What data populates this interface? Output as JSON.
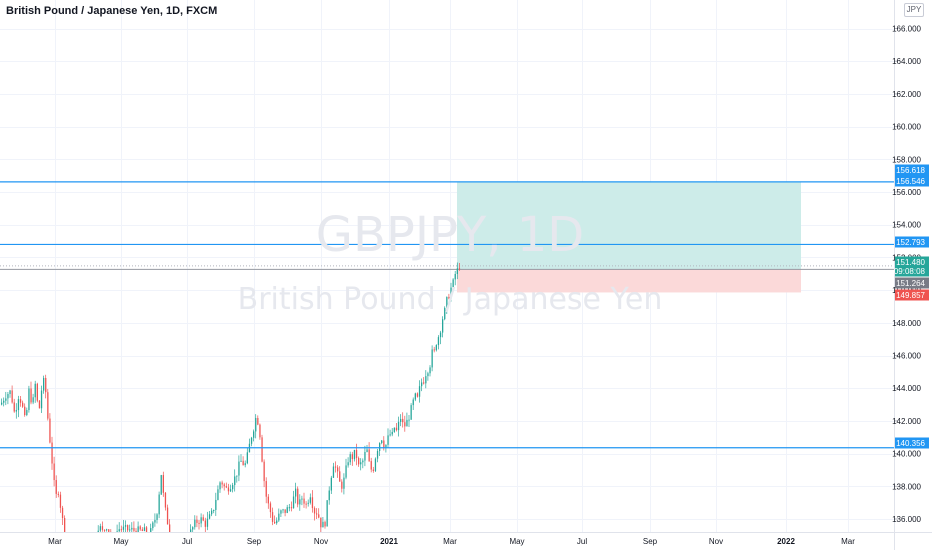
{
  "header": {
    "title": "British Pound / Japanese Yen, 1D, FXCM",
    "currency": "JPY"
  },
  "watermark": {
    "symbol": "GBPJPY, 1D",
    "name": "British Pound / Japanese Yen"
  },
  "colors": {
    "up": "#26a69a",
    "down": "#ef5350",
    "hline": "#2196f3",
    "profit_zone": "#cdece9",
    "loss_zone": "#fbd9d9",
    "countdown_label": "#26a69a",
    "stop_label": "#ef5350",
    "entry_label": "#787b86"
  },
  "chart_data": {
    "type": "candlestick",
    "x": [
      "2020-03",
      "2020-05",
      "2020-07",
      "2020-09",
      "2020-11",
      "2021-01",
      "2021-03",
      "2021-05",
      "2021-07",
      "2021-09",
      "2021-11",
      "2022-01",
      "2022-03"
    ],
    "x_tick_labels": [
      "Mar",
      "May",
      "Jul",
      "Sep",
      "Nov",
      "2021",
      "Mar",
      "May",
      "Jul",
      "Sep",
      "Nov",
      "2022",
      "Mar"
    ],
    "y_ticks": [
      136,
      138,
      140,
      142,
      144,
      146,
      148,
      150,
      152,
      154,
      156,
      158,
      160,
      162,
      164,
      166
    ],
    "y_tick_labels": [
      "136.000",
      "138.000",
      "140.000",
      "142.000",
      "144.000",
      "146.000",
      "148.000",
      "150.000",
      "152.000",
      "154.000",
      "156.000",
      "158.000",
      "160.000",
      "162.000",
      "164.000",
      "166.000"
    ],
    "ylim": [
      134.7,
      167
    ],
    "close_path": [
      [
        0,
        143.0
      ],
      [
        5,
        143.6
      ],
      [
        10,
        143.8
      ],
      [
        14,
        142.4
      ],
      [
        18,
        143.6
      ],
      [
        21,
        143.1
      ],
      [
        25,
        141.8
      ],
      [
        28,
        143.9
      ],
      [
        32,
        143.0
      ],
      [
        35,
        144.4
      ],
      [
        38,
        142.2
      ],
      [
        40,
        143.7
      ],
      [
        44,
        144.6
      ],
      [
        47,
        142.3
      ],
      [
        49,
        141.0
      ],
      [
        51,
        139.8
      ],
      [
        53,
        138.4
      ],
      [
        55,
        137.3
      ],
      [
        58,
        137.8
      ],
      [
        61,
        136.2
      ],
      [
        64,
        135.3
      ],
      [
        67,
        134.8
      ],
      [
        92,
        134.9
      ],
      [
        98,
        135.6
      ],
      [
        102,
        135.2
      ],
      [
        106,
        135.6
      ],
      [
        112,
        134.8
      ],
      [
        118,
        135.4
      ],
      [
        150,
        135.2
      ],
      [
        156,
        136.3
      ],
      [
        159,
        137.9
      ],
      [
        161,
        139.0
      ],
      [
        163,
        137.2
      ],
      [
        166,
        136.0
      ],
      [
        170,
        135.2
      ],
      [
        180,
        134.8
      ],
      [
        190,
        135.2
      ],
      [
        195,
        135.8
      ],
      [
        200,
        136.0
      ],
      [
        205,
        135.7
      ],
      [
        208,
        136.0
      ],
      [
        212,
        136.4
      ],
      [
        215,
        137.2
      ],
      [
        220,
        138.4
      ],
      [
        225,
        137.8
      ],
      [
        230,
        138.1
      ],
      [
        235,
        138.6
      ],
      [
        238,
        139.2
      ],
      [
        241,
        139.6
      ],
      [
        244,
        139.2
      ],
      [
        247,
        139.9
      ],
      [
        250,
        140.9
      ],
      [
        253,
        141.6
      ],
      [
        256,
        142.4
      ],
      [
        259,
        141.4
      ],
      [
        261,
        140.0
      ],
      [
        263,
        138.6
      ],
      [
        266,
        137.2
      ],
      [
        270,
        136.4
      ],
      [
        273,
        135.7
      ],
      [
        276,
        135.9
      ],
      [
        280,
        136.4
      ],
      [
        285,
        136.5
      ],
      [
        290,
        136.8
      ],
      [
        295,
        137.6
      ],
      [
        298,
        136.8
      ],
      [
        302,
        137.4
      ],
      [
        305,
        136.8
      ],
      [
        310,
        137.6
      ],
      [
        313,
        136.5
      ],
      [
        317,
        136.4
      ],
      [
        320,
        135.7
      ],
      [
        323,
        135.6
      ],
      [
        325,
        135.9
      ],
      [
        327,
        137.2
      ],
      [
        330,
        138.5
      ],
      [
        333,
        139.5
      ],
      [
        336,
        138.9
      ],
      [
        339,
        138.2
      ],
      [
        342,
        138.0
      ],
      [
        345,
        138.9
      ],
      [
        348,
        139.8
      ],
      [
        352,
        139.8
      ],
      [
        355,
        140.1
      ],
      [
        358,
        139.2
      ],
      [
        362,
        139.5
      ],
      [
        366,
        140.3
      ],
      [
        369,
        139.2
      ],
      [
        372,
        138.9
      ],
      [
        375,
        139.9
      ],
      [
        378,
        140.6
      ],
      [
        381,
        141.0
      ],
      [
        384,
        140.4
      ],
      [
        386,
        140.6
      ],
      [
        389,
        141.3
      ],
      [
        391,
        140.8
      ],
      [
        393,
        141.8
      ],
      [
        395,
        141.2
      ],
      [
        397,
        141.6
      ],
      [
        400,
        142.2
      ],
      [
        403,
        141.6
      ],
      [
        406,
        141.9
      ],
      [
        409,
        142.4
      ],
      [
        412,
        143.0
      ],
      [
        414,
        143.5
      ],
      [
        417,
        143.3
      ],
      [
        420,
        144.3
      ],
      [
        423,
        144.5
      ],
      [
        426,
        145.1
      ],
      [
        429,
        145.3
      ],
      [
        431,
        146.2
      ],
      [
        433,
        146.0
      ],
      [
        435,
        146.6
      ],
      [
        437,
        147.3
      ],
      [
        439,
        147.0
      ],
      [
        441,
        148.5
      ],
      [
        443,
        148.1
      ],
      [
        445,
        149.2
      ],
      [
        447,
        149.4
      ],
      [
        449,
        149.9
      ],
      [
        451,
        150.2
      ],
      [
        453,
        150.5
      ],
      [
        455,
        151.1
      ],
      [
        457,
        151.2
      ],
      [
        459,
        151.56
      ],
      [
        460,
        151.48
      ]
    ],
    "horizontal_lines": [
      156.618,
      152.793,
      140.356
    ],
    "position": {
      "entry": 151.264,
      "target": 156.618,
      "stop": 149.857
    },
    "price_labels": [
      {
        "value": "156.618",
        "kind": "line"
      },
      {
        "value": "156.546",
        "kind": "line"
      },
      {
        "value": "152.793",
        "kind": "line"
      },
      {
        "value": "151.480",
        "kind": "last"
      },
      {
        "value": "09:08:08",
        "kind": "countdown"
      },
      {
        "value": "151.264",
        "kind": "entry"
      },
      {
        "value": "149.857",
        "kind": "stop"
      },
      {
        "value": "140.356",
        "kind": "line"
      }
    ]
  }
}
